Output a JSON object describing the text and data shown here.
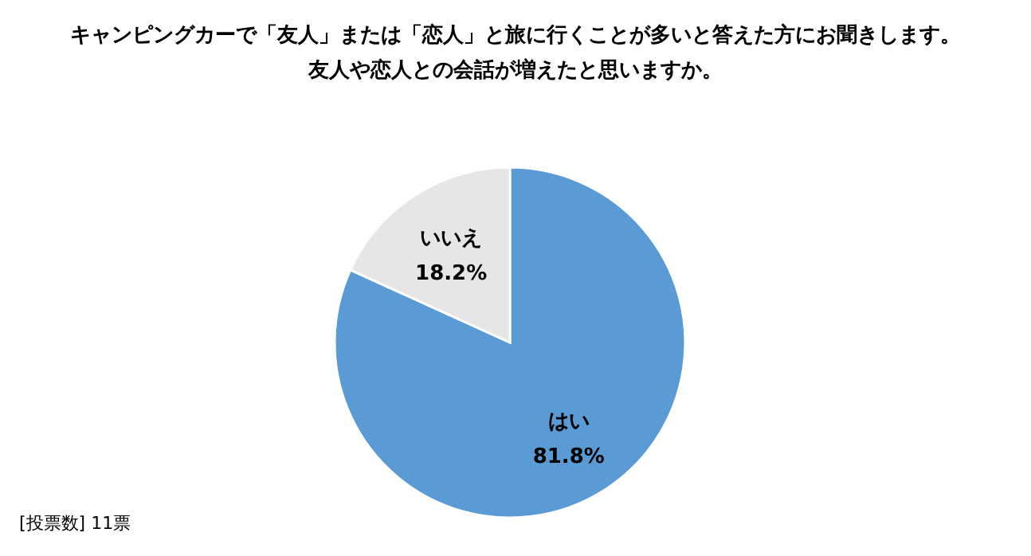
{
  "chart_data": {
    "type": "pie",
    "title": "キャンピングカーで「友人」または「恋人」と旅に行くことが多いと答えた方にお聞きします。",
    "subtitle": "友人や恋人との会話が増えたと思いますか。",
    "categories": [
      "はい",
      "いいえ"
    ],
    "values": [
      81.8,
      18.2
    ],
    "value_labels": [
      "81.8%",
      "18.2%"
    ],
    "colors": [
      "#5b9bd5",
      "#e7e6e6"
    ],
    "legend": false,
    "annotations": [
      "[投票数] 11票"
    ]
  }
}
